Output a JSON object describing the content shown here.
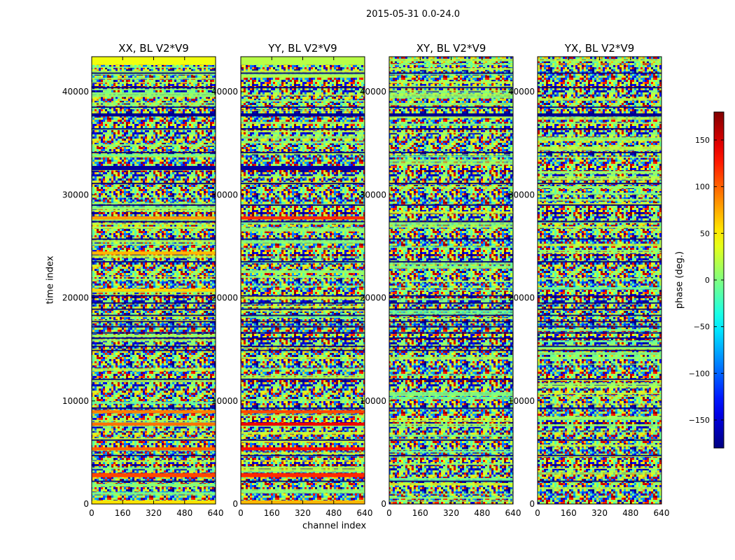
{
  "chart_data": {
    "type": "heatmap",
    "suptitle": "2015-05-31 0.0-24.0",
    "xlabel": "channel index",
    "ylabel": "time index",
    "colorbar_label": "phase (deg.)",
    "colormap": "jet",
    "vrange": [
      -180,
      180
    ],
    "colorbar_ticks": [
      -150,
      -100,
      -50,
      0,
      50,
      100,
      150
    ],
    "xlim": [
      0,
      640
    ],
    "ylim": [
      0,
      43400
    ],
    "xticks": [
      0,
      160,
      320,
      480,
      640
    ],
    "yticks": [
      0,
      10000,
      20000,
      30000,
      40000
    ],
    "panels": [
      {
        "title": "XX, BL V2*V9",
        "bands": [
          {
            "t0": 0,
            "t1": 350,
            "phase": 55
          },
          {
            "t0": 2600,
            "t1": 3000,
            "phase": 110
          },
          {
            "t0": 5200,
            "t1": 5500,
            "phase": 100
          },
          {
            "t0": 7600,
            "t1": 7900,
            "phase": 95
          },
          {
            "t0": 8800,
            "t1": 9100,
            "phase": 90
          },
          {
            "t0": 20600,
            "t1": 20900,
            "phase": 60
          },
          {
            "t0": 24200,
            "t1": 24500,
            "phase": 70
          },
          {
            "t0": 27600,
            "t1": 27900,
            "phase": 80
          },
          {
            "t0": 32400,
            "t1": 32800,
            "phase": -170
          },
          {
            "t0": 37600,
            "t1": 37900,
            "phase": -175
          },
          {
            "t0": 42600,
            "t1": 43400,
            "phase": 40
          }
        ]
      },
      {
        "title": "YY, BL V2*V9",
        "bands": [
          {
            "t0": 0,
            "t1": 350,
            "phase": 70
          },
          {
            "t0": 2600,
            "t1": 3000,
            "phase": 120
          },
          {
            "t0": 5200,
            "t1": 5500,
            "phase": 130
          },
          {
            "t0": 7600,
            "t1": 7900,
            "phase": 140
          },
          {
            "t0": 8800,
            "t1": 9100,
            "phase": 110
          },
          {
            "t0": 27600,
            "t1": 27900,
            "phase": 120
          },
          {
            "t0": 32400,
            "t1": 32800,
            "phase": -170
          },
          {
            "t0": 37600,
            "t1": 37900,
            "phase": -175
          },
          {
            "t0": 42600,
            "t1": 43400,
            "phase": 20
          }
        ]
      },
      {
        "title": "XY, BL V2*V9",
        "bands": [
          {
            "t0": 37600,
            "t1": 37900,
            "phase": -175
          }
        ]
      },
      {
        "title": "YX, BL V2*V9",
        "bands": [
          {
            "t0": 37600,
            "t1": 37900,
            "phase": -175
          }
        ]
      }
    ],
    "dark_lines": [
      2200,
      4700,
      6200,
      9300,
      12100,
      14900,
      15300,
      16100,
      16600,
      17200,
      17700,
      18300,
      18900,
      19500,
      20200,
      23500,
      25700,
      27400,
      29000,
      31100,
      34100,
      36400,
      38500,
      40400,
      41800
    ]
  }
}
